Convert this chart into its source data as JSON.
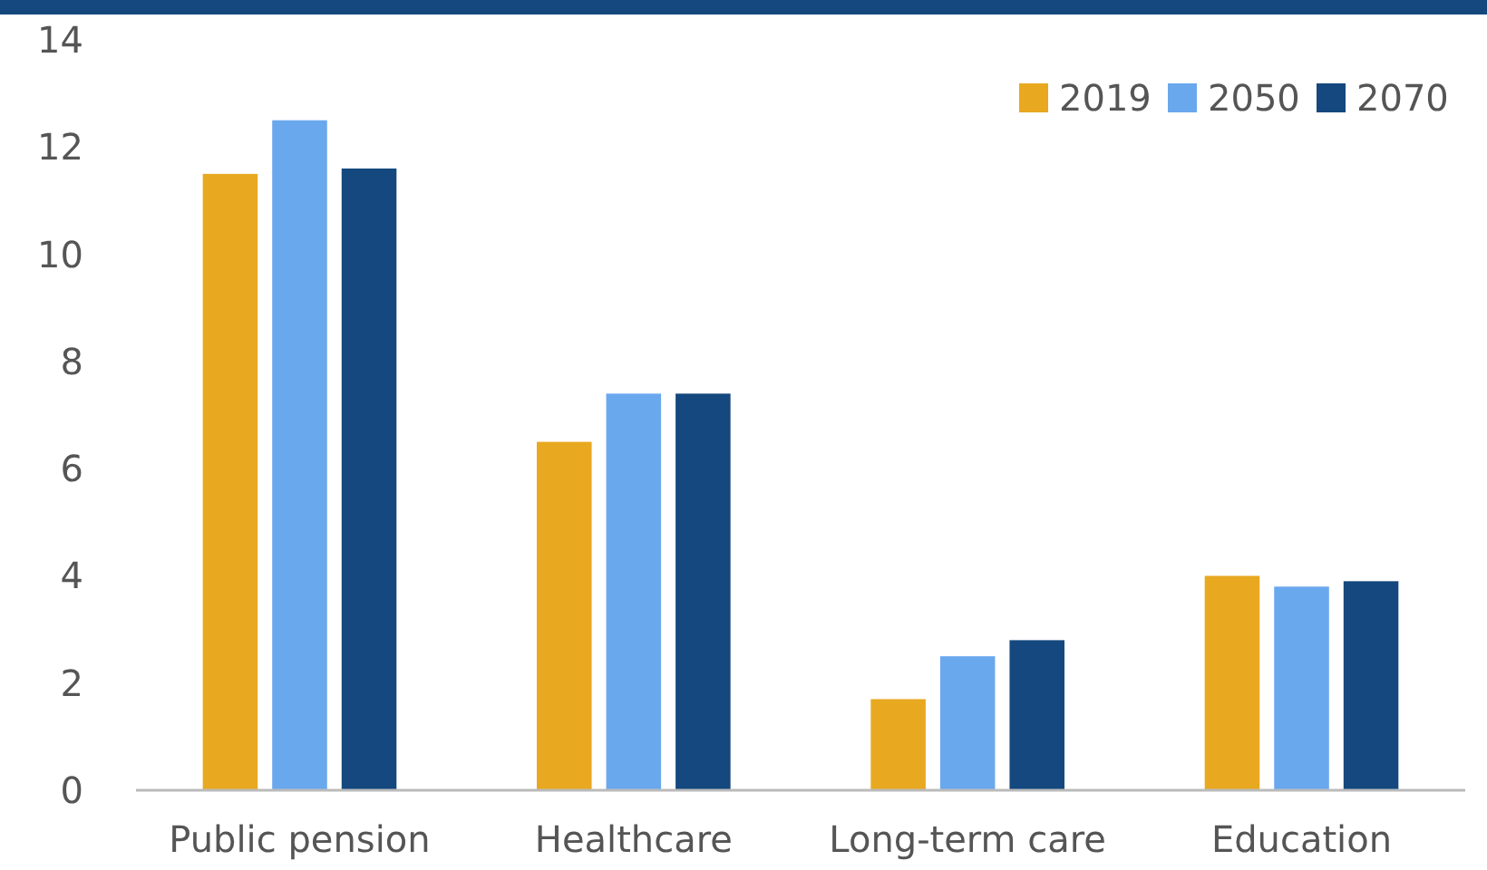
{
  "chart_data": {
    "type": "bar",
    "categories": [
      "Public pension",
      "Healthcare",
      "Long-term care",
      "Education"
    ],
    "series": [
      {
        "name": "2019",
        "color": "#e8a820",
        "values": [
          11.5,
          6.5,
          1.7,
          4.0
        ]
      },
      {
        "name": "2050",
        "color": "#6aa8ee",
        "values": [
          12.5,
          7.4,
          2.5,
          3.8
        ]
      },
      {
        "name": "2070",
        "color": "#14487e",
        "values": [
          11.6,
          7.4,
          2.8,
          3.9
        ]
      }
    ],
    "ylim": [
      0,
      14
    ],
    "yticks": [
      0,
      2,
      4,
      6,
      8,
      10,
      12,
      14
    ],
    "grid": false,
    "legend": "top right"
  }
}
